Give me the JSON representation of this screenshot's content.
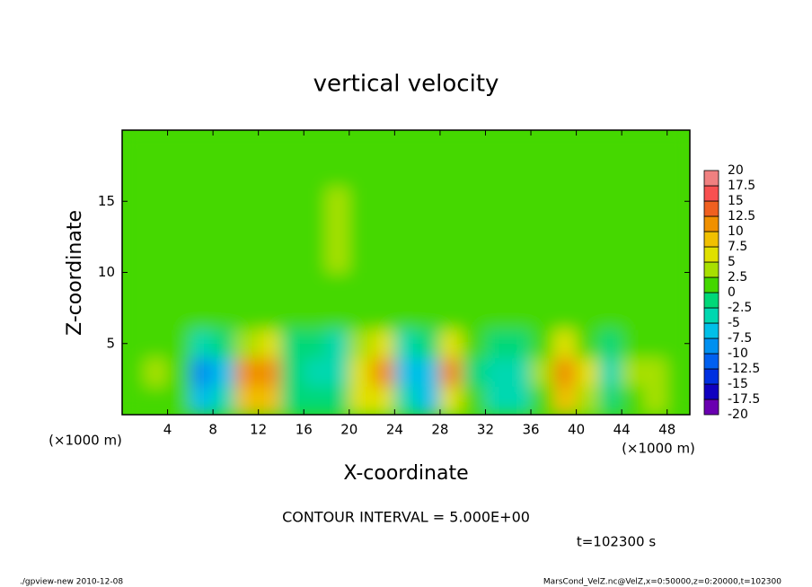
{
  "chart_data": {
    "type": "heatmap",
    "title": "vertical velocity",
    "x_label": "X-coordinate",
    "y_label": "Z-coordinate",
    "x_unit": "(×1000 m)",
    "y_unit": "(×1000 m)",
    "xlim": [
      0,
      50
    ],
    "ylim": [
      0,
      20
    ],
    "xticks": [
      4,
      8,
      12,
      16,
      20,
      24,
      28,
      32,
      36,
      40,
      44,
      48
    ],
    "yticks": [
      5,
      10,
      15
    ],
    "x": [
      1,
      3,
      5,
      7,
      9,
      11,
      13,
      15,
      17,
      19,
      21,
      23,
      25,
      27,
      29,
      31,
      33,
      35,
      37,
      39,
      41,
      43,
      45,
      47,
      49
    ],
    "y": [
      1,
      3,
      5,
      7,
      9,
      11,
      13,
      15,
      17,
      19
    ],
    "values": [
      [
        1,
        2,
        1,
        -6,
        -5,
        8,
        9,
        -1,
        -2,
        -2,
        5,
        7,
        -5,
        -6,
        7,
        1,
        -3,
        -3,
        1,
        8,
        3,
        -2,
        2,
        3,
        1
      ],
      [
        1,
        3,
        0,
        -8,
        -6,
        11,
        12,
        -2,
        -3,
        -5,
        6,
        12,
        -7,
        -6,
        10,
        -1,
        -4,
        -5,
        3,
        12,
        6,
        -3,
        3,
        4,
        2
      ],
      [
        1,
        2,
        1,
        -3,
        -2,
        4,
        5,
        -1,
        -1,
        -5,
        3,
        6,
        -3,
        -2,
        5,
        0,
        -2,
        -2,
        2,
        5,
        2,
        -1,
        1,
        2,
        1
      ],
      [
        1,
        1,
        0,
        1,
        0,
        1,
        2,
        1,
        0,
        1,
        1,
        2,
        0,
        1,
        2,
        1,
        0,
        1,
        1,
        2,
        1,
        0,
        1,
        1,
        1
      ],
      [
        1,
        1,
        0,
        1,
        1,
        1,
        2,
        1,
        1,
        2,
        1,
        1,
        0,
        1,
        1,
        1,
        0,
        1,
        1,
        1,
        0,
        1,
        1,
        0,
        1
      ],
      [
        1,
        0,
        1,
        1,
        0,
        1,
        1,
        1,
        1,
        3,
        1,
        1,
        1,
        0,
        1,
        1,
        1,
        0,
        1,
        1,
        1,
        1,
        0,
        1,
        1
      ],
      [
        0,
        1,
        1,
        0,
        1,
        1,
        1,
        1,
        2,
        4,
        2,
        1,
        1,
        2,
        1,
        1,
        1,
        1,
        0,
        1,
        1,
        1,
        1,
        0,
        1
      ],
      [
        1,
        1,
        0,
        1,
        1,
        1,
        1,
        1,
        2,
        3,
        2,
        1,
        0,
        1,
        1,
        1,
        1,
        1,
        1,
        2,
        1,
        1,
        1,
        1,
        0
      ],
      [
        1,
        0,
        1,
        1,
        1,
        0,
        1,
        1,
        1,
        2,
        1,
        1,
        1,
        1,
        1,
        0,
        1,
        1,
        2,
        2,
        1,
        1,
        0,
        1,
        1
      ],
      [
        0,
        1,
        1,
        1,
        1,
        1,
        1,
        1,
        1,
        1,
        1,
        1,
        1,
        1,
        1,
        1,
        1,
        1,
        1,
        1,
        1,
        1,
        1,
        1,
        1
      ]
    ],
    "levels": [
      -20,
      -17.5,
      -15,
      -12.5,
      -10,
      -7.5,
      -5,
      -2.5,
      0,
      2.5,
      5,
      7.5,
      10,
      12.5,
      15,
      17.5,
      20
    ],
    "colors": [
      "#6a00b0",
      "#1000c0",
      "#0030e0",
      "#0060f0",
      "#0090f0",
      "#00c0e8",
      "#00d8b0",
      "#00d878",
      "#44d800",
      "#a8e000",
      "#e0e000",
      "#f0c000",
      "#f09000",
      "#f06020",
      "#f85050",
      "#f08080"
    ],
    "contour_interval": "CONTOUR INTERVAL = 5.000E+00",
    "time": "t=102300 s",
    "footer_left": "./gpview-new  2010-12-08",
    "footer_right": "MarsCond_VelZ.nc@VelZ,x=0:50000,z=0:20000,t=102300"
  }
}
